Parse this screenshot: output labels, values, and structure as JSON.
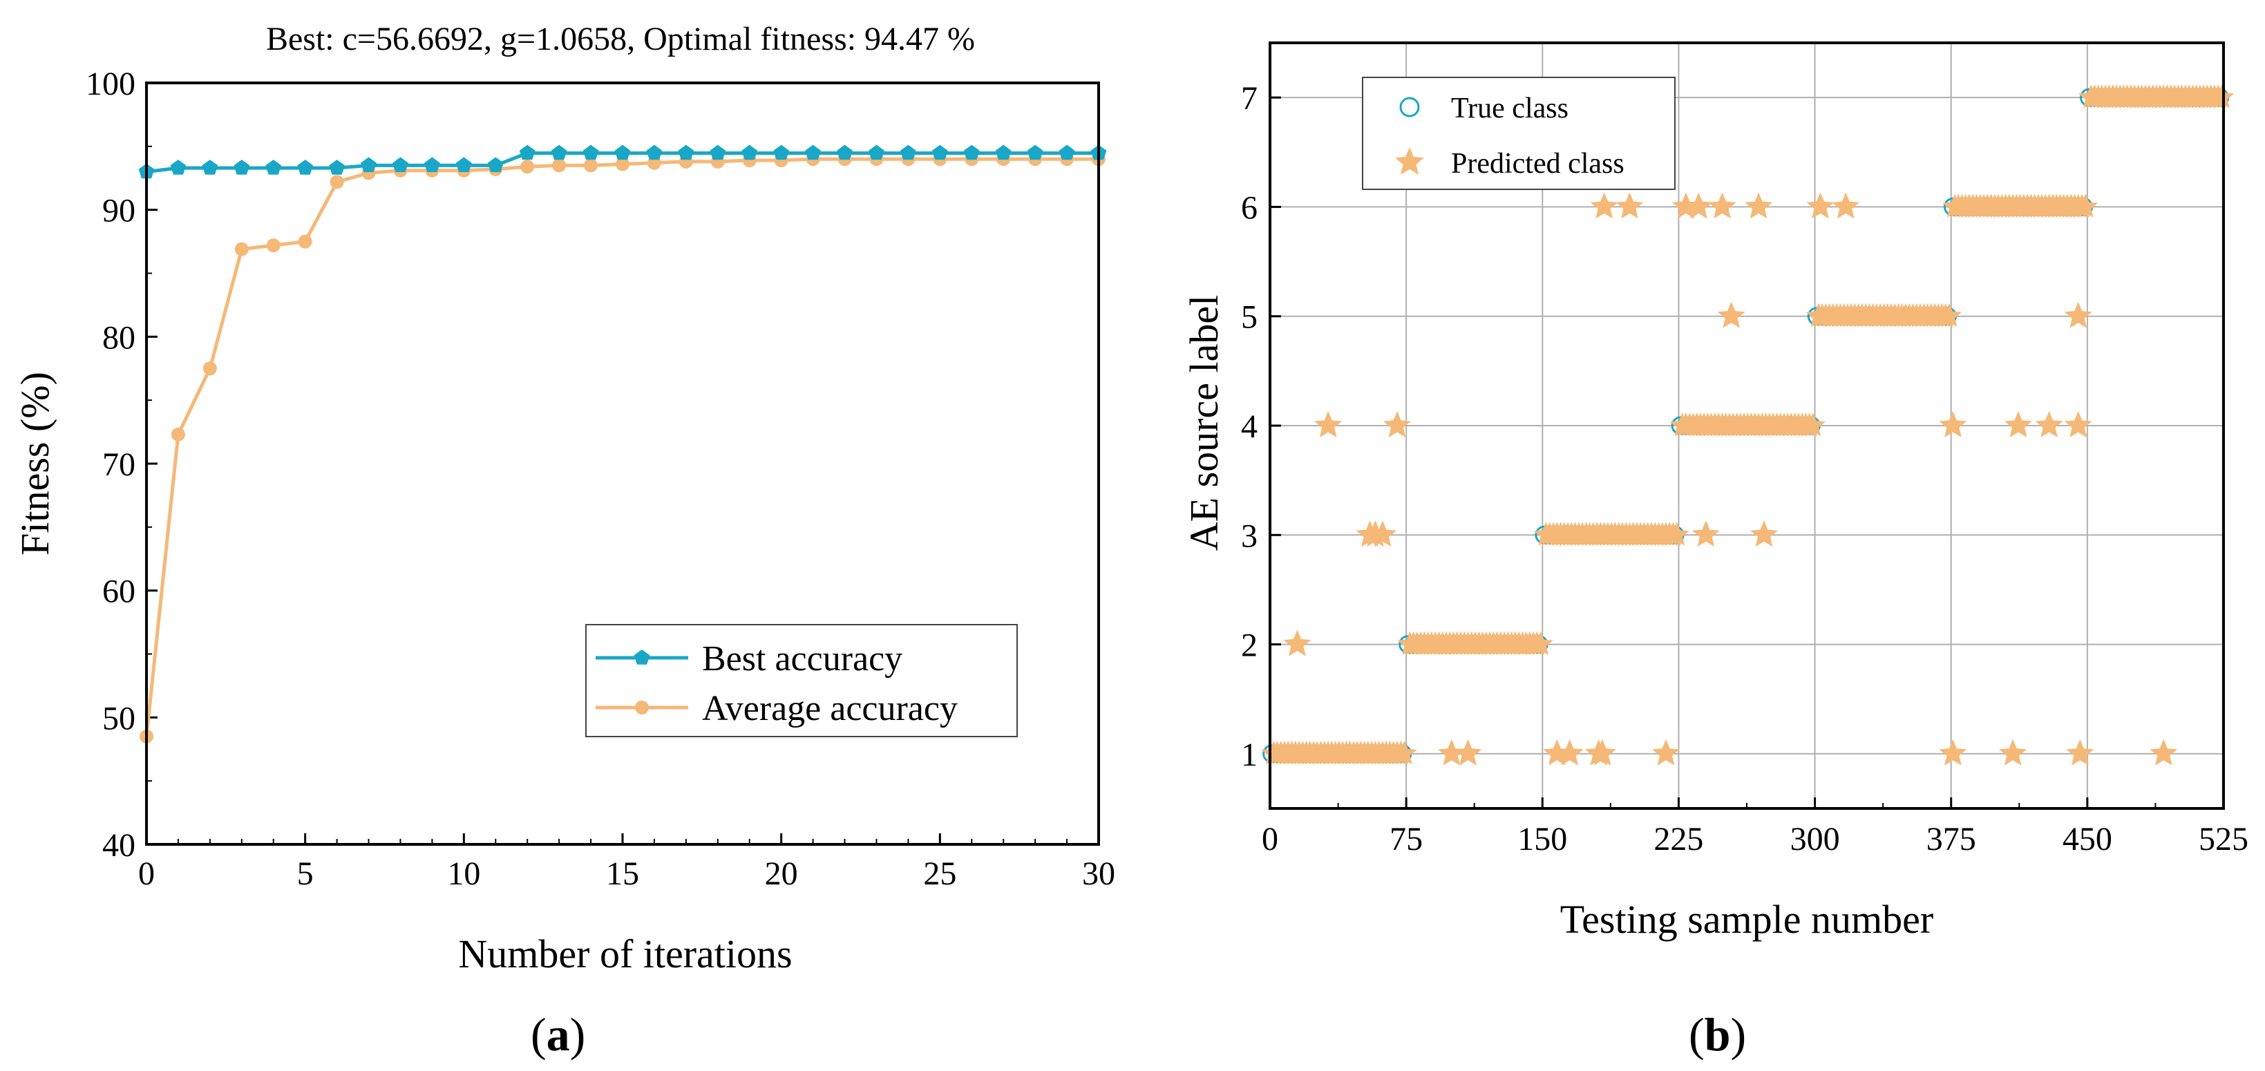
{
  "chart_data": [
    {
      "type": "line",
      "panel_label": "(a)",
      "panel_letter": "a",
      "title": "Best: c=56.6692, g=1.0658, Optimal fitness: 94.47 %",
      "xlabel": "Number of iterations",
      "ylabel": "Fitness (%)",
      "xlim": [
        0,
        30
      ],
      "ylim": [
        40,
        100
      ],
      "xticks": [
        "0",
        "5",
        "10",
        "15",
        "20",
        "25",
        "30"
      ],
      "yticks": [
        "40",
        "50",
        "60",
        "70",
        "80",
        "90",
        "100"
      ],
      "grid": false,
      "legend_position": "lower-right",
      "x": [
        0,
        1,
        2,
        3,
        4,
        5,
        6,
        7,
        8,
        9,
        10,
        11,
        12,
        13,
        14,
        15,
        16,
        17,
        18,
        19,
        20,
        21,
        22,
        23,
        24,
        25,
        26,
        27,
        28,
        29,
        30
      ],
      "series": [
        {
          "name": "Best accuracy",
          "color": "#1aa7c7",
          "marker": "pentagon",
          "values": [
            93.0,
            93.3,
            93.3,
            93.3,
            93.3,
            93.3,
            93.3,
            93.5,
            93.5,
            93.5,
            93.5,
            93.5,
            94.47,
            94.47,
            94.47,
            94.47,
            94.47,
            94.47,
            94.47,
            94.47,
            94.47,
            94.47,
            94.47,
            94.47,
            94.47,
            94.47,
            94.47,
            94.47,
            94.47,
            94.47,
            94.47
          ]
        },
        {
          "name": "Average accuracy",
          "color": "#f5b877",
          "marker": "circle",
          "values": [
            48.5,
            72.3,
            77.5,
            86.9,
            87.2,
            87.5,
            92.2,
            92.9,
            93.1,
            93.1,
            93.1,
            93.2,
            93.4,
            93.5,
            93.5,
            93.6,
            93.7,
            93.8,
            93.8,
            93.9,
            93.9,
            94.0,
            94.0,
            94.0,
            94.0,
            94.0,
            94.0,
            94.0,
            94.0,
            94.0,
            94.0
          ]
        }
      ]
    },
    {
      "type": "scatter",
      "panel_label": "(b)",
      "panel_letter": "b",
      "xlabel": "Testing sample number",
      "ylabel": "AE source label",
      "xlim": [
        0,
        525
      ],
      "ylim": [
        0.5,
        7.5
      ],
      "xticks": [
        "0",
        "75",
        "150",
        "225",
        "300",
        "375",
        "450",
        "525"
      ],
      "yticks": [
        "1",
        "2",
        "3",
        "4",
        "5",
        "6",
        "7"
      ],
      "grid": true,
      "legend_position": "top-left",
      "series": [
        {
          "name": "True class",
          "color": "#1aa7c7",
          "marker": "open-circle",
          "segments": [
            {
              "class": 1,
              "start": 1,
              "end": 75
            },
            {
              "class": 2,
              "start": 76,
              "end": 150
            },
            {
              "class": 3,
              "start": 151,
              "end": 225
            },
            {
              "class": 4,
              "start": 226,
              "end": 300
            },
            {
              "class": 5,
              "start": 301,
              "end": 375
            },
            {
              "class": 6,
              "start": 376,
              "end": 450
            },
            {
              "class": 7,
              "start": 451,
              "end": 525
            }
          ]
        },
        {
          "name": "Predicted class",
          "color": "#f5b877",
          "marker": "star",
          "misclassified": [
            {
              "x": 15,
              "y": 2
            },
            {
              "x": 32,
              "y": 4
            },
            {
              "x": 70,
              "y": 4
            },
            {
              "x": 55,
              "y": 3
            },
            {
              "x": 58,
              "y": 3
            },
            {
              "x": 62,
              "y": 3
            },
            {
              "x": 100,
              "y": 1
            },
            {
              "x": 109,
              "y": 1
            },
            {
              "x": 158,
              "y": 1
            },
            {
              "x": 165,
              "y": 1
            },
            {
              "x": 181,
              "y": 1
            },
            {
              "x": 183,
              "y": 1
            },
            {
              "x": 218,
              "y": 1
            },
            {
              "x": 240,
              "y": 3
            },
            {
              "x": 272,
              "y": 3
            },
            {
              "x": 184,
              "y": 6
            },
            {
              "x": 198,
              "y": 6
            },
            {
              "x": 229,
              "y": 6
            },
            {
              "x": 236,
              "y": 6
            },
            {
              "x": 249,
              "y": 6
            },
            {
              "x": 269,
              "y": 6
            },
            {
              "x": 303,
              "y": 6
            },
            {
              "x": 317,
              "y": 6
            },
            {
              "x": 254,
              "y": 5
            },
            {
              "x": 445,
              "y": 5
            },
            {
              "x": 376,
              "y": 4
            },
            {
              "x": 412,
              "y": 4
            },
            {
              "x": 429,
              "y": 4
            },
            {
              "x": 445,
              "y": 4
            },
            {
              "x": 376,
              "y": 1
            },
            {
              "x": 409,
              "y": 1
            },
            {
              "x": 446,
              "y": 1
            },
            {
              "x": 492,
              "y": 1
            }
          ]
        }
      ]
    }
  ]
}
